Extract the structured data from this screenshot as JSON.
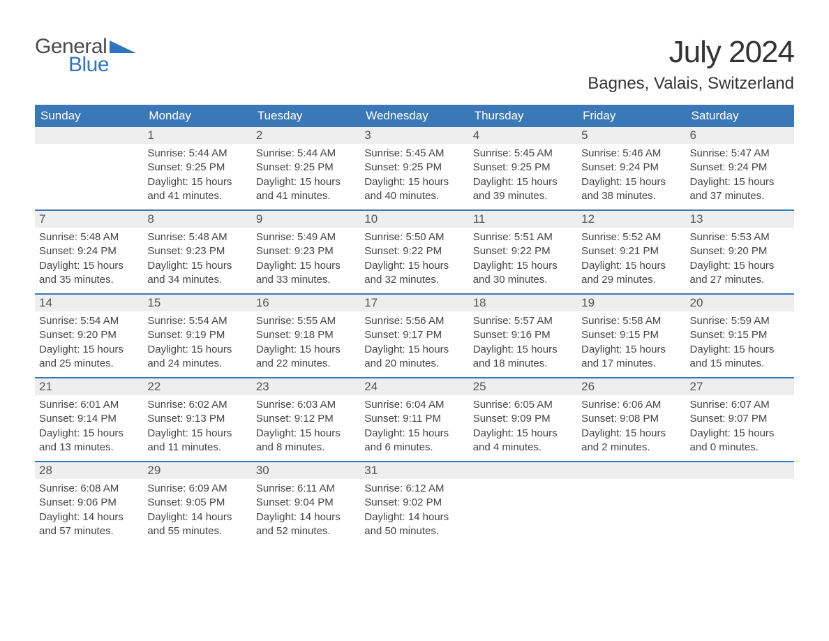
{
  "logo": {
    "general": "General",
    "blue": "Blue",
    "triangle_color": "#2d76bb"
  },
  "title": "July 2024",
  "location": "Bagnes, Valais, Switzerland",
  "colors": {
    "header_bg": "#3a78b8",
    "header_text": "#ffffff",
    "daynum_bg": "#eeeeee",
    "divider": "#3a78b8",
    "body_text": "#444444",
    "title_text": "#333333"
  },
  "typography": {
    "month_title_fontsize": 44,
    "location_fontsize": 24,
    "dayhead_fontsize": 17,
    "daynum_fontsize": 17,
    "cell_fontsize": 15
  },
  "day_headers": [
    "Sunday",
    "Monday",
    "Tuesday",
    "Wednesday",
    "Thursday",
    "Friday",
    "Saturday"
  ],
  "weeks": [
    [
      {
        "n": "",
        "sunrise": "",
        "sunset": "",
        "daylight": ""
      },
      {
        "n": "1",
        "sunrise": "Sunrise: 5:44 AM",
        "sunset": "Sunset: 9:25 PM",
        "daylight": "Daylight: 15 hours and 41 minutes."
      },
      {
        "n": "2",
        "sunrise": "Sunrise: 5:44 AM",
        "sunset": "Sunset: 9:25 PM",
        "daylight": "Daylight: 15 hours and 41 minutes."
      },
      {
        "n": "3",
        "sunrise": "Sunrise: 5:45 AM",
        "sunset": "Sunset: 9:25 PM",
        "daylight": "Daylight: 15 hours and 40 minutes."
      },
      {
        "n": "4",
        "sunrise": "Sunrise: 5:45 AM",
        "sunset": "Sunset: 9:25 PM",
        "daylight": "Daylight: 15 hours and 39 minutes."
      },
      {
        "n": "5",
        "sunrise": "Sunrise: 5:46 AM",
        "sunset": "Sunset: 9:24 PM",
        "daylight": "Daylight: 15 hours and 38 minutes."
      },
      {
        "n": "6",
        "sunrise": "Sunrise: 5:47 AM",
        "sunset": "Sunset: 9:24 PM",
        "daylight": "Daylight: 15 hours and 37 minutes."
      }
    ],
    [
      {
        "n": "7",
        "sunrise": "Sunrise: 5:48 AM",
        "sunset": "Sunset: 9:24 PM",
        "daylight": "Daylight: 15 hours and 35 minutes."
      },
      {
        "n": "8",
        "sunrise": "Sunrise: 5:48 AM",
        "sunset": "Sunset: 9:23 PM",
        "daylight": "Daylight: 15 hours and 34 minutes."
      },
      {
        "n": "9",
        "sunrise": "Sunrise: 5:49 AM",
        "sunset": "Sunset: 9:23 PM",
        "daylight": "Daylight: 15 hours and 33 minutes."
      },
      {
        "n": "10",
        "sunrise": "Sunrise: 5:50 AM",
        "sunset": "Sunset: 9:22 PM",
        "daylight": "Daylight: 15 hours and 32 minutes."
      },
      {
        "n": "11",
        "sunrise": "Sunrise: 5:51 AM",
        "sunset": "Sunset: 9:22 PM",
        "daylight": "Daylight: 15 hours and 30 minutes."
      },
      {
        "n": "12",
        "sunrise": "Sunrise: 5:52 AM",
        "sunset": "Sunset: 9:21 PM",
        "daylight": "Daylight: 15 hours and 29 minutes."
      },
      {
        "n": "13",
        "sunrise": "Sunrise: 5:53 AM",
        "sunset": "Sunset: 9:20 PM",
        "daylight": "Daylight: 15 hours and 27 minutes."
      }
    ],
    [
      {
        "n": "14",
        "sunrise": "Sunrise: 5:54 AM",
        "sunset": "Sunset: 9:20 PM",
        "daylight": "Daylight: 15 hours and 25 minutes."
      },
      {
        "n": "15",
        "sunrise": "Sunrise: 5:54 AM",
        "sunset": "Sunset: 9:19 PM",
        "daylight": "Daylight: 15 hours and 24 minutes."
      },
      {
        "n": "16",
        "sunrise": "Sunrise: 5:55 AM",
        "sunset": "Sunset: 9:18 PM",
        "daylight": "Daylight: 15 hours and 22 minutes."
      },
      {
        "n": "17",
        "sunrise": "Sunrise: 5:56 AM",
        "sunset": "Sunset: 9:17 PM",
        "daylight": "Daylight: 15 hours and 20 minutes."
      },
      {
        "n": "18",
        "sunrise": "Sunrise: 5:57 AM",
        "sunset": "Sunset: 9:16 PM",
        "daylight": "Daylight: 15 hours and 18 minutes."
      },
      {
        "n": "19",
        "sunrise": "Sunrise: 5:58 AM",
        "sunset": "Sunset: 9:15 PM",
        "daylight": "Daylight: 15 hours and 17 minutes."
      },
      {
        "n": "20",
        "sunrise": "Sunrise: 5:59 AM",
        "sunset": "Sunset: 9:15 PM",
        "daylight": "Daylight: 15 hours and 15 minutes."
      }
    ],
    [
      {
        "n": "21",
        "sunrise": "Sunrise: 6:01 AM",
        "sunset": "Sunset: 9:14 PM",
        "daylight": "Daylight: 15 hours and 13 minutes."
      },
      {
        "n": "22",
        "sunrise": "Sunrise: 6:02 AM",
        "sunset": "Sunset: 9:13 PM",
        "daylight": "Daylight: 15 hours and 11 minutes."
      },
      {
        "n": "23",
        "sunrise": "Sunrise: 6:03 AM",
        "sunset": "Sunset: 9:12 PM",
        "daylight": "Daylight: 15 hours and 8 minutes."
      },
      {
        "n": "24",
        "sunrise": "Sunrise: 6:04 AM",
        "sunset": "Sunset: 9:11 PM",
        "daylight": "Daylight: 15 hours and 6 minutes."
      },
      {
        "n": "25",
        "sunrise": "Sunrise: 6:05 AM",
        "sunset": "Sunset: 9:09 PM",
        "daylight": "Daylight: 15 hours and 4 minutes."
      },
      {
        "n": "26",
        "sunrise": "Sunrise: 6:06 AM",
        "sunset": "Sunset: 9:08 PM",
        "daylight": "Daylight: 15 hours and 2 minutes."
      },
      {
        "n": "27",
        "sunrise": "Sunrise: 6:07 AM",
        "sunset": "Sunset: 9:07 PM",
        "daylight": "Daylight: 15 hours and 0 minutes."
      }
    ],
    [
      {
        "n": "28",
        "sunrise": "Sunrise: 6:08 AM",
        "sunset": "Sunset: 9:06 PM",
        "daylight": "Daylight: 14 hours and 57 minutes."
      },
      {
        "n": "29",
        "sunrise": "Sunrise: 6:09 AM",
        "sunset": "Sunset: 9:05 PM",
        "daylight": "Daylight: 14 hours and 55 minutes."
      },
      {
        "n": "30",
        "sunrise": "Sunrise: 6:11 AM",
        "sunset": "Sunset: 9:04 PM",
        "daylight": "Daylight: 14 hours and 52 minutes."
      },
      {
        "n": "31",
        "sunrise": "Sunrise: 6:12 AM",
        "sunset": "Sunset: 9:02 PM",
        "daylight": "Daylight: 14 hours and 50 minutes."
      },
      {
        "n": "",
        "sunrise": "",
        "sunset": "",
        "daylight": ""
      },
      {
        "n": "",
        "sunrise": "",
        "sunset": "",
        "daylight": ""
      },
      {
        "n": "",
        "sunrise": "",
        "sunset": "",
        "daylight": ""
      }
    ]
  ]
}
